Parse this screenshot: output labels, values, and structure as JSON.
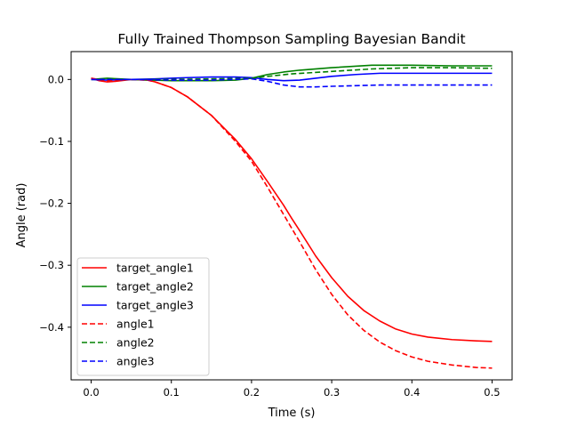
{
  "chart_data": {
    "type": "line",
    "title": "Fully Trained Thompson Sampling Bayesian Bandit",
    "xlabel": "Time (s)",
    "ylabel": "Angle (rad)",
    "xlim": [
      -0.025,
      0.525
    ],
    "ylim": [
      -0.485,
      0.045
    ],
    "xticks": [
      0.0,
      0.1,
      0.2,
      0.3,
      0.4,
      0.5
    ],
    "xtick_labels": [
      "0.0",
      "0.1",
      "0.2",
      "0.3",
      "0.4",
      "0.5"
    ],
    "yticks": [
      0.0,
      -0.1,
      -0.2,
      -0.3,
      -0.4
    ],
    "ytick_labels": [
      "0.0",
      "−0.1",
      "−0.2",
      "−0.3",
      "−0.4"
    ],
    "grid": false,
    "legend_position": "lower-left",
    "series": [
      {
        "name": "target_angle1",
        "color": "#ff0000",
        "dash": "solid",
        "x": [
          0.0,
          0.01,
          0.02,
          0.03,
          0.05,
          0.07,
          0.08,
          0.1,
          0.12,
          0.15,
          0.18,
          0.2,
          0.22,
          0.24,
          0.25,
          0.26,
          0.28,
          0.3,
          0.32,
          0.34,
          0.36,
          0.38,
          0.4,
          0.42,
          0.45,
          0.48,
          0.5
        ],
        "y": [
          0.002,
          -0.002,
          -0.004,
          -0.003,
          0.0,
          -0.001,
          -0.004,
          -0.013,
          -0.028,
          -0.058,
          -0.097,
          -0.128,
          -0.165,
          -0.203,
          -0.224,
          -0.244,
          -0.285,
          -0.32,
          -0.35,
          -0.373,
          -0.39,
          -0.403,
          -0.411,
          -0.416,
          -0.42,
          -0.422,
          -0.423
        ]
      },
      {
        "name": "target_angle2",
        "color": "#008000",
        "dash": "solid",
        "x": [
          0.0,
          0.02,
          0.05,
          0.1,
          0.15,
          0.18,
          0.2,
          0.22,
          0.24,
          0.26,
          0.3,
          0.35,
          0.4,
          0.45,
          0.5
        ],
        "y": [
          0.0,
          0.002,
          0.0,
          -0.002,
          -0.002,
          -0.001,
          0.002,
          0.008,
          0.012,
          0.015,
          0.019,
          0.023,
          0.023,
          0.022,
          0.022
        ]
      },
      {
        "name": "target_angle3",
        "color": "#0000ff",
        "dash": "solid",
        "x": [
          0.0,
          0.02,
          0.05,
          0.08,
          0.1,
          0.12,
          0.15,
          0.18,
          0.2,
          0.22,
          0.24,
          0.26,
          0.28,
          0.3,
          0.33,
          0.36,
          0.4,
          0.45,
          0.5
        ],
        "y": [
          0.0,
          -0.001,
          0.0,
          0.001,
          0.002,
          0.003,
          0.004,
          0.004,
          0.003,
          0.0,
          -0.002,
          -0.001,
          0.002,
          0.005,
          0.008,
          0.01,
          0.01,
          0.01,
          0.01
        ]
      },
      {
        "name": "angle1",
        "color": "#ff0000",
        "dash": "dashed",
        "x": [
          0.0,
          0.02,
          0.05,
          0.07,
          0.08,
          0.1,
          0.12,
          0.15,
          0.18,
          0.2,
          0.22,
          0.24,
          0.25,
          0.26,
          0.28,
          0.3,
          0.32,
          0.34,
          0.36,
          0.38,
          0.4,
          0.42,
          0.45,
          0.48,
          0.5
        ],
        "y": [
          0.002,
          -0.002,
          0.0,
          -0.001,
          -0.004,
          -0.013,
          -0.028,
          -0.058,
          -0.1,
          -0.132,
          -0.174,
          -0.218,
          -0.24,
          -0.262,
          -0.307,
          -0.347,
          -0.38,
          -0.405,
          -0.424,
          -0.438,
          -0.448,
          -0.455,
          -0.461,
          -0.465,
          -0.466
        ]
      },
      {
        "name": "angle2",
        "color": "#008000",
        "dash": "dashed",
        "x": [
          0.0,
          0.05,
          0.1,
          0.15,
          0.2,
          0.22,
          0.25,
          0.3,
          0.35,
          0.4,
          0.45,
          0.5
        ],
        "y": [
          0.0,
          0.0,
          0.0,
          0.001,
          0.002,
          0.005,
          0.009,
          0.013,
          0.017,
          0.019,
          0.019,
          0.018
        ]
      },
      {
        "name": "angle3",
        "color": "#0000ff",
        "dash": "dashed",
        "x": [
          0.0,
          0.05,
          0.1,
          0.15,
          0.2,
          0.22,
          0.24,
          0.26,
          0.28,
          0.3,
          0.33,
          0.36,
          0.4,
          0.45,
          0.5
        ],
        "y": [
          0.0,
          0.0,
          -0.001,
          -0.001,
          0.001,
          -0.003,
          -0.009,
          -0.012,
          -0.012,
          -0.011,
          -0.01,
          -0.009,
          -0.009,
          -0.009,
          -0.009
        ]
      }
    ]
  }
}
